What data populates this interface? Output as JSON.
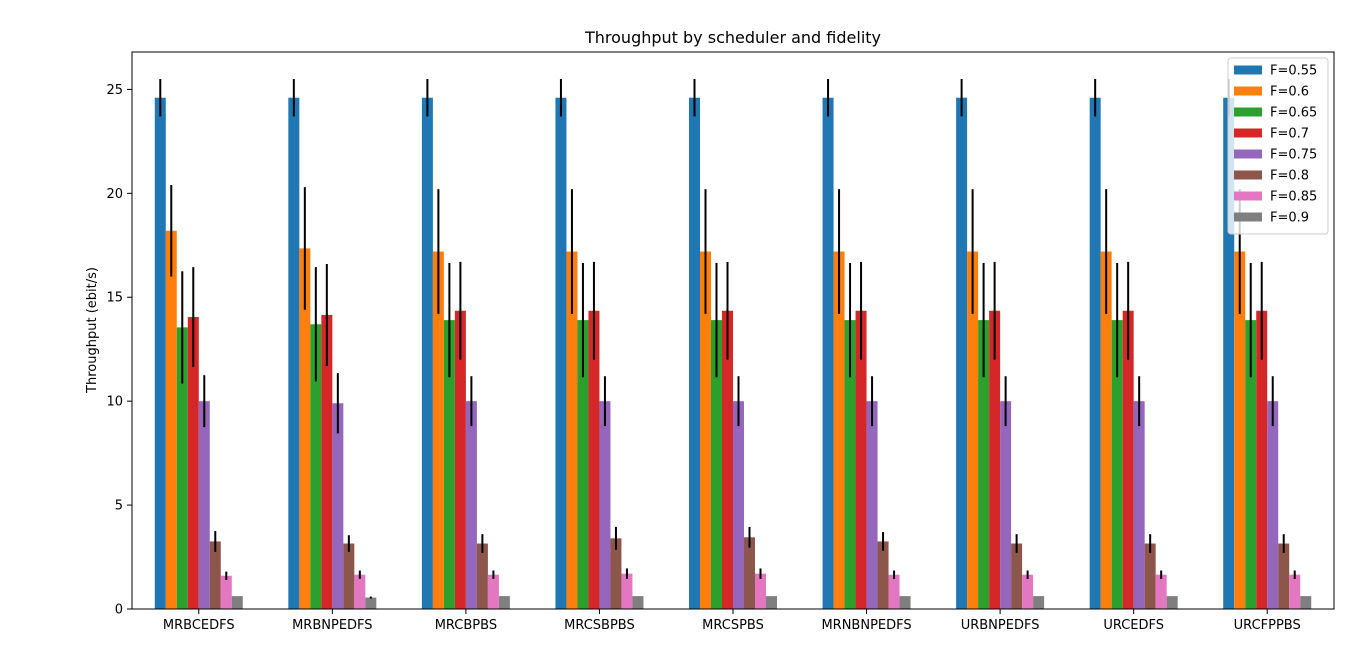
{
  "chart_data": {
    "type": "bar",
    "title": "Throughput by scheduler and fidelity",
    "xlabel": "",
    "ylabel": "Throughput (ebit/s)",
    "ylim": [
      0,
      26.8
    ],
    "yticks": [
      0,
      5,
      10,
      15,
      20,
      25
    ],
    "grid": false,
    "legend_position": "top-right",
    "categories": [
      "MRBCEDFS",
      "MRBNPEDFS",
      "MRCBPBS",
      "MRCSBPBS",
      "MRCSPBS",
      "MRNBNPEDFS",
      "URBNPEDFS",
      "URCEDFS",
      "URCFPPBS"
    ],
    "series": [
      {
        "name": "F=0.55",
        "color": "#1f77b4",
        "values": [
          24.6,
          24.6,
          24.6,
          24.6,
          24.6,
          24.6,
          24.6,
          24.6,
          24.6
        ],
        "errors": [
          0.9,
          0.9,
          0.9,
          0.9,
          0.9,
          0.9,
          0.9,
          0.9,
          0.9
        ]
      },
      {
        "name": "F=0.6",
        "color": "#ff7f0e",
        "values": [
          18.2,
          17.35,
          17.2,
          17.2,
          17.2,
          17.2,
          17.2,
          17.2,
          17.2
        ],
        "errors": [
          2.2,
          2.95,
          3.0,
          3.0,
          3.0,
          3.0,
          3.0,
          3.0,
          3.0
        ]
      },
      {
        "name": "F=0.65",
        "color": "#2ca02c",
        "values": [
          13.55,
          13.7,
          13.9,
          13.9,
          13.9,
          13.9,
          13.9,
          13.9,
          13.9
        ],
        "errors": [
          2.7,
          2.75,
          2.75,
          2.75,
          2.75,
          2.75,
          2.75,
          2.75,
          2.75
        ]
      },
      {
        "name": "F=0.7",
        "color": "#d62728",
        "values": [
          14.05,
          14.15,
          14.35,
          14.35,
          14.35,
          14.35,
          14.35,
          14.35,
          14.35
        ],
        "errors": [
          2.4,
          2.45,
          2.35,
          2.35,
          2.35,
          2.35,
          2.35,
          2.35,
          2.35
        ]
      },
      {
        "name": "F=0.75",
        "color": "#9467bd",
        "values": [
          10.0,
          9.9,
          10.0,
          10.0,
          10.0,
          10.0,
          10.0,
          10.0,
          10.0
        ],
        "errors": [
          1.25,
          1.45,
          1.2,
          1.2,
          1.2,
          1.2,
          1.2,
          1.2,
          1.2
        ]
      },
      {
        "name": "F=0.8",
        "color": "#8c564b",
        "values": [
          3.25,
          3.15,
          3.15,
          3.4,
          3.45,
          3.25,
          3.15,
          3.15,
          3.15
        ],
        "errors": [
          0.5,
          0.4,
          0.45,
          0.55,
          0.5,
          0.45,
          0.45,
          0.45,
          0.45
        ]
      },
      {
        "name": "F=0.85",
        "color": "#e377c2",
        "values": [
          1.6,
          1.65,
          1.65,
          1.7,
          1.7,
          1.65,
          1.65,
          1.65,
          1.65
        ],
        "errors": [
          0.2,
          0.2,
          0.2,
          0.25,
          0.25,
          0.2,
          0.2,
          0.2,
          0.2
        ]
      },
      {
        "name": "F=0.9",
        "color": "#7f7f7f",
        "values": [
          0.62,
          0.55,
          0.62,
          0.62,
          0.62,
          0.62,
          0.62,
          0.62,
          0.62
        ],
        "errors": [
          0.0,
          0.05,
          0.0,
          0.0,
          0.0,
          0.0,
          0.0,
          0.0,
          0.0
        ]
      }
    ]
  }
}
